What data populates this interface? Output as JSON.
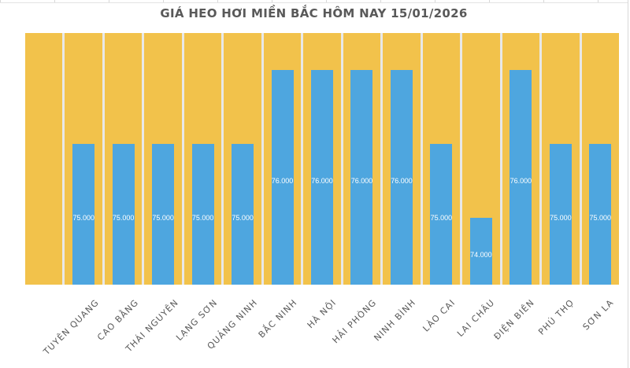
{
  "colors": {
    "background_bar": "#F2C24B",
    "value_bar": "#4EA6DF",
    "bar_gap": "#E8E8E8",
    "title_text": "#595959",
    "axis_text": "#595959",
    "value_label_text": "#FFFFFF",
    "gridline": "#D8D8D8"
  },
  "chart_data": {
    "type": "bar",
    "title": "GIÁ HEO HƠI MIỀN BẮC HÔM NAY 15/01/2026",
    "categories": [
      "TUYÊN QUANG",
      "CAO BẰNG",
      "THÁI NGUYÊN",
      "LẠNG SƠN",
      "QUẢNG NINH",
      "BẮC NINH",
      "HÀ NỘI",
      "HẢI PHÒNG",
      "NINH BÌNH",
      "LÀO CAI",
      "LAI CHÂU",
      "ĐIỆN BIÊN",
      "PHÚ THỌ",
      "SƠN LA"
    ],
    "values": [
      75000,
      75000,
      75000,
      75000,
      75000,
      76000,
      76000,
      76000,
      76000,
      75000,
      74000,
      76000,
      75000,
      75000
    ],
    "value_labels": [
      "75.000",
      "75.000",
      "75.000",
      "75.000",
      "75.000",
      "76.000",
      "76.000",
      "76.000",
      "76.000",
      "75.000",
      "74.000",
      "76.000",
      "75.000",
      "75.000"
    ],
    "xlabel": "",
    "ylabel": "",
    "ylim": [
      73100,
      76500
    ],
    "grid": false,
    "legend": false,
    "background_bars_full_height": true,
    "leading_empty_slot": true,
    "x_label_rotation_deg": 45
  }
}
